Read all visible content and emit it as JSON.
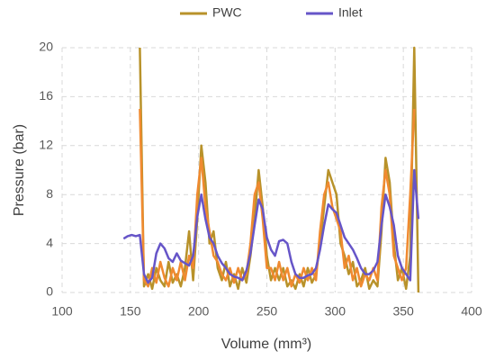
{
  "chart_data": {
    "type": "line",
    "x_label": "Volume (mm³)",
    "y_label": "Pressure (bar)",
    "legend": "top",
    "grid": true,
    "xlim": [
      100,
      400
    ],
    "xticks": [
      100,
      150,
      200,
      250,
      300,
      350,
      400
    ],
    "ylim": [
      0,
      20
    ],
    "yticks": [
      0,
      4,
      8,
      12,
      16,
      20
    ],
    "x": [
      145,
      148,
      151,
      154,
      157,
      160,
      163,
      166,
      169,
      172,
      175,
      178,
      181,
      184,
      187,
      190,
      193,
      196,
      199,
      202,
      205,
      208,
      211,
      214,
      217,
      220,
      223,
      226,
      229,
      232,
      235,
      238,
      241,
      244,
      247,
      250,
      253,
      256,
      259,
      262,
      265,
      268,
      271,
      274,
      277,
      280,
      283,
      286,
      289,
      292,
      295,
      298,
      301,
      304,
      307,
      310,
      313,
      316,
      319,
      322,
      325,
      328,
      331,
      334,
      337,
      340,
      343,
      346,
      349,
      352,
      355,
      358,
      361
    ],
    "series": [
      {
        "name": "PWC",
        "color": "#b8922a",
        "values": [
          null,
          null,
          null,
          null,
          20,
          0.5,
          1.5,
          0.3,
          2,
          1,
          0.5,
          2.5,
          0.8,
          1.5,
          0.5,
          2,
          5,
          1,
          6,
          12,
          9,
          4,
          5,
          2,
          1,
          2.5,
          0.5,
          1.5,
          0.3,
          2,
          0.8,
          3,
          6,
          10,
          7,
          3,
          1,
          2,
          1,
          2,
          0.5,
          1,
          0.3,
          1.5,
          0.5,
          2,
          0.8,
          1.5,
          4,
          7,
          10,
          9,
          8,
          4,
          3,
          1.5,
          2.5,
          0.5,
          1,
          2,
          0.3,
          1,
          0.5,
          5,
          11,
          9,
          4,
          1,
          2,
          0.3,
          3,
          20,
          0
        ]
      },
      {
        "color": "#f08a30",
        "values": [
          null,
          null,
          null,
          null,
          15,
          1,
          0.5,
          2,
          0.8,
          2.5,
          1.2,
          0.5,
          2,
          1,
          2.5,
          1,
          3,
          2,
          8,
          11,
          7,
          5,
          3,
          2.5,
          1.5,
          1,
          2,
          0.8,
          2,
          1,
          1.5,
          4,
          8,
          9,
          6,
          2,
          2,
          1,
          2.5,
          1,
          2,
          0.5,
          1.5,
          0.8,
          2,
          1,
          2,
          1,
          5,
          8,
          9,
          7,
          6,
          5,
          2,
          3,
          1,
          2,
          0.5,
          1.5,
          1,
          2,
          1,
          7,
          10,
          8,
          3,
          2,
          1,
          2,
          8,
          15,
          null
        ]
      },
      {
        "name": "Inlet",
        "color": "#6655c8",
        "values": [
          4.4,
          4.6,
          4.7,
          4.6,
          4.7,
          1.5,
          0.8,
          1.2,
          3.2,
          4,
          3.6,
          2.8,
          2.5,
          3.2,
          2.6,
          2.4,
          2.2,
          3,
          6.2,
          8,
          6,
          4.5,
          4,
          3,
          2.4,
          2,
          1.5,
          1.3,
          1.2,
          1,
          1.8,
          3.2,
          5.5,
          7.6,
          6.8,
          4.5,
          3.5,
          3,
          4.2,
          4.3,
          4,
          2.5,
          1.5,
          1.2,
          1.2,
          1.4,
          1.5,
          2,
          3.5,
          5.5,
          7.2,
          6.8,
          6.5,
          5.5,
          4.5,
          4,
          3.5,
          2.8,
          2,
          1.5,
          1.5,
          1.8,
          2.5,
          5.5,
          8,
          7,
          5.5,
          3,
          2,
          1.5,
          1,
          10,
          6
        ]
      }
    ]
  }
}
